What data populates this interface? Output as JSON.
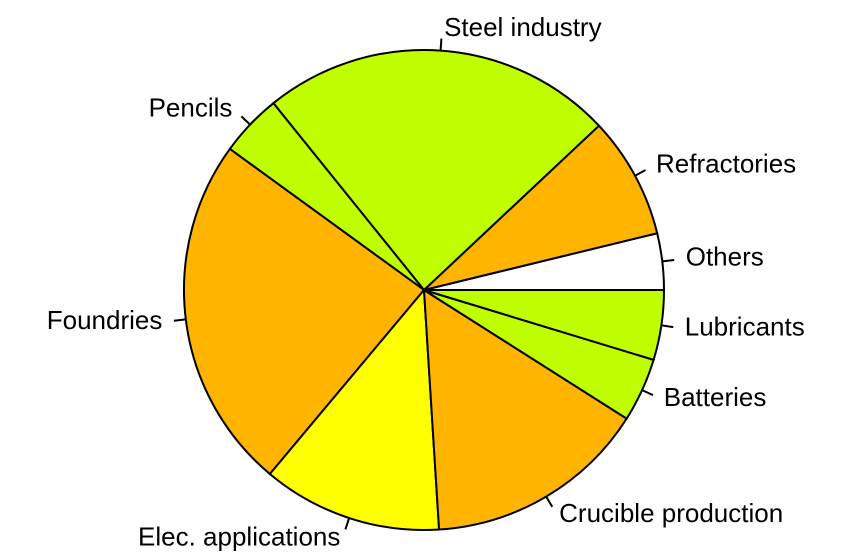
{
  "chart_data": {
    "type": "pie",
    "categories": [
      "Others",
      "Refractories",
      "Steel industry",
      "Pencils",
      "Foundries",
      "Elec. applications",
      "Crucible production",
      "Batteries",
      "Lubricants"
    ],
    "values": [
      3.8,
      8.2,
      23.8,
      4.2,
      23.9,
      12.1,
      15,
      4.3,
      4.7
    ],
    "colors": [
      "#FFFFFF",
      "#FFB400",
      "#BFFF00",
      "#BFFF00",
      "#FFB400",
      "#FFFF00",
      "#FFB400",
      "#BFFF00",
      "#BFFF00"
    ]
  }
}
